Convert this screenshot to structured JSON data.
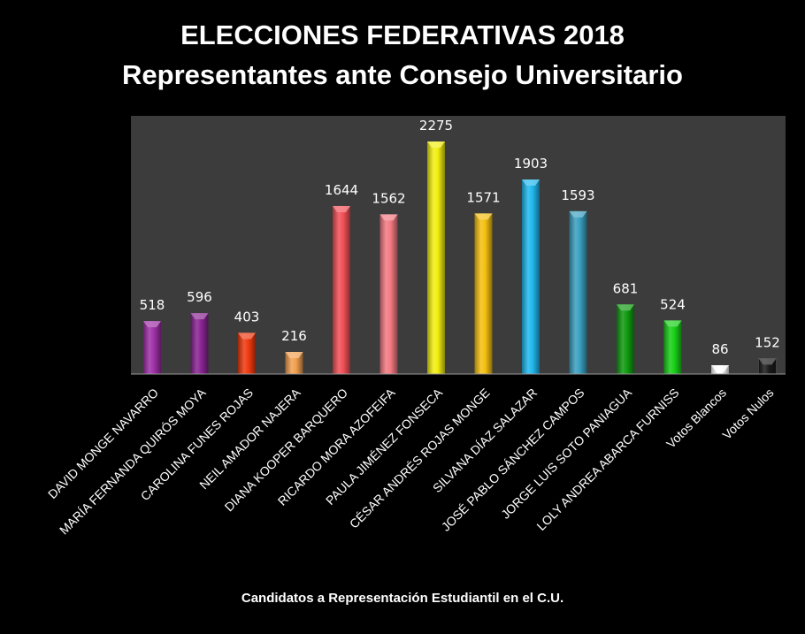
{
  "chart_data": {
    "type": "bar",
    "title": "ELECCIONES FEDERATIVAS 2018",
    "subtitle": "Representantes ante Consejo Universitario",
    "xlabel": "Candidatos  a Representación Estudiantil  en el C.U.",
    "ylabel": "",
    "ylim": [
      0,
      2430
    ],
    "grid": false,
    "legend": "none",
    "categories": [
      "DAVID MONGE NAVARRO",
      "MARÍA FERNANDA QUIRÓS MOYA",
      "CAROLINA FUNES ROJAS",
      "NEIL AMADOR NAJERA",
      "DIANA KOOPER BARQUERO",
      "RICARDO MORA AZOFEIFA",
      "PAULA JIMÉNEZ FONSECA",
      "CÉSAR ANDRÉS ROJAS MONGE",
      "SILVANA DÍAZ SALAZAR",
      "JOSÉ PABLO SÁNCHEZ CAMPOS",
      "JORGE LUIS SOTO PANIAGUA",
      "LOLY ANDREA ABARCA FURNISS",
      "Votos Blancos",
      "Votos Nulos"
    ],
    "values": [
      518,
      596,
      403,
      216,
      1644,
      1562,
      2275,
      1571,
      1903,
      1593,
      681,
      524,
      86,
      152
    ],
    "colors": [
      "#a030a8",
      "#8a2494",
      "#f03a10",
      "#f2a050",
      "#f25058",
      "#f47a82",
      "#f2ee10",
      "#f5c010",
      "#20b8ee",
      "#3aa0c0",
      "#109a10",
      "#18d018",
      "#ffffff",
      "#1a1a1a"
    ],
    "plot_background": "#3c3c3c"
  }
}
